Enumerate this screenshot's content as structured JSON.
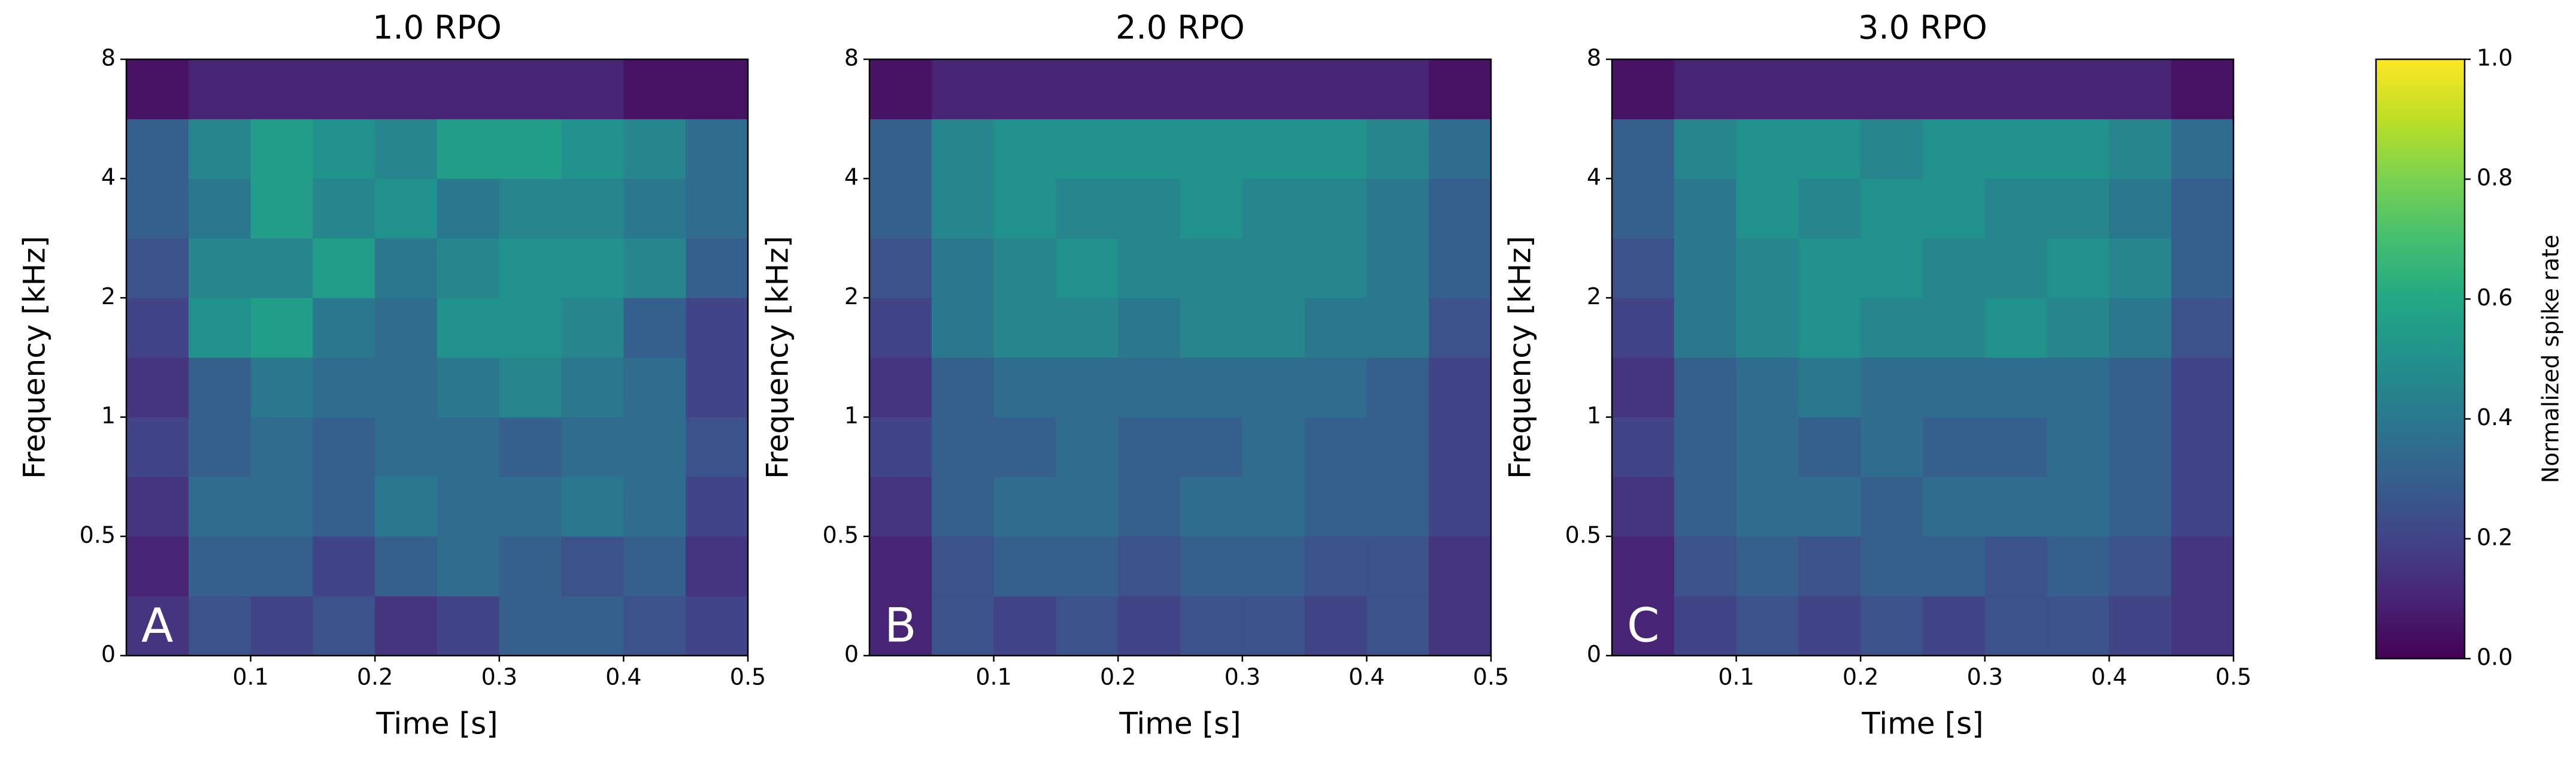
{
  "chart_data": [
    {
      "type": "heatmap",
      "title": "1.0 RPO",
      "annotation": "A",
      "xlabel": "Time [s]",
      "ylabel": "Frequency [kHz]",
      "xlim": [
        0,
        0.5
      ],
      "xticks": [
        0.1,
        0.2,
        0.3,
        0.4,
        0.5
      ],
      "ylim": [
        0,
        8
      ],
      "yticks": [
        0,
        0.5,
        1,
        2,
        4,
        8
      ],
      "x_edges": [
        0,
        0.05,
        0.1,
        0.15,
        0.2,
        0.25,
        0.3,
        0.35,
        0.4,
        0.45,
        0.5
      ],
      "y_edges": [
        0,
        0.25,
        0.5,
        0.75,
        1,
        1.5,
        2,
        3,
        4,
        6,
        8
      ],
      "z": [
        [
          0.15,
          0.25,
          0.2,
          0.25,
          0.15,
          0.2,
          0.3,
          0.3,
          0.25,
          0.2
        ],
        [
          0.1,
          0.3,
          0.3,
          0.2,
          0.3,
          0.35,
          0.3,
          0.25,
          0.3,
          0.15
        ],
        [
          0.15,
          0.35,
          0.35,
          0.3,
          0.4,
          0.35,
          0.35,
          0.4,
          0.35,
          0.2
        ],
        [
          0.2,
          0.3,
          0.35,
          0.3,
          0.35,
          0.35,
          0.3,
          0.35,
          0.35,
          0.25
        ],
        [
          0.15,
          0.3,
          0.4,
          0.35,
          0.35,
          0.4,
          0.45,
          0.4,
          0.35,
          0.2
        ],
        [
          0.2,
          0.5,
          0.55,
          0.4,
          0.35,
          0.5,
          0.5,
          0.45,
          0.3,
          0.2
        ],
        [
          0.25,
          0.45,
          0.45,
          0.55,
          0.4,
          0.45,
          0.5,
          0.5,
          0.45,
          0.3
        ],
        [
          0.3,
          0.4,
          0.55,
          0.45,
          0.5,
          0.4,
          0.45,
          0.45,
          0.4,
          0.35
        ],
        [
          0.3,
          0.45,
          0.55,
          0.5,
          0.45,
          0.55,
          0.55,
          0.5,
          0.45,
          0.35
        ],
        [
          0.05,
          0.1,
          0.1,
          0.1,
          0.1,
          0.1,
          0.1,
          0.1,
          0.05,
          0.05
        ]
      ]
    },
    {
      "type": "heatmap",
      "title": "2.0 RPO",
      "annotation": "B",
      "xlabel": "Time [s]",
      "ylabel": "Frequency [kHz]",
      "xlim": [
        0,
        0.5
      ],
      "xticks": [
        0.1,
        0.2,
        0.3,
        0.4,
        0.5
      ],
      "ylim": [
        0,
        8
      ],
      "yticks": [
        0,
        0.5,
        1,
        2,
        4,
        8
      ],
      "x_edges": [
        0,
        0.05,
        0.1,
        0.15,
        0.2,
        0.25,
        0.3,
        0.35,
        0.4,
        0.45,
        0.5
      ],
      "y_edges": [
        0,
        0.25,
        0.5,
        0.75,
        1,
        1.5,
        2,
        3,
        4,
        6,
        8
      ],
      "z": [
        [
          0.1,
          0.25,
          0.2,
          0.25,
          0.2,
          0.25,
          0.25,
          0.2,
          0.25,
          0.15
        ],
        [
          0.1,
          0.25,
          0.3,
          0.3,
          0.25,
          0.3,
          0.3,
          0.25,
          0.25,
          0.15
        ],
        [
          0.15,
          0.3,
          0.35,
          0.35,
          0.3,
          0.35,
          0.35,
          0.3,
          0.3,
          0.2
        ],
        [
          0.2,
          0.3,
          0.3,
          0.35,
          0.3,
          0.3,
          0.35,
          0.3,
          0.3,
          0.2
        ],
        [
          0.15,
          0.3,
          0.35,
          0.35,
          0.35,
          0.35,
          0.35,
          0.35,
          0.3,
          0.2
        ],
        [
          0.2,
          0.4,
          0.45,
          0.45,
          0.4,
          0.45,
          0.45,
          0.4,
          0.4,
          0.25
        ],
        [
          0.25,
          0.4,
          0.45,
          0.5,
          0.45,
          0.45,
          0.45,
          0.45,
          0.4,
          0.3
        ],
        [
          0.3,
          0.45,
          0.5,
          0.45,
          0.45,
          0.5,
          0.45,
          0.45,
          0.4,
          0.3
        ],
        [
          0.3,
          0.45,
          0.5,
          0.5,
          0.5,
          0.5,
          0.5,
          0.5,
          0.45,
          0.35
        ],
        [
          0.05,
          0.1,
          0.1,
          0.1,
          0.1,
          0.1,
          0.1,
          0.1,
          0.1,
          0.05
        ]
      ]
    },
    {
      "type": "heatmap",
      "title": "3.0 RPO",
      "annotation": "C",
      "xlabel": "Time [s]",
      "ylabel": "Frequency [kHz]",
      "xlim": [
        0,
        0.5
      ],
      "xticks": [
        0.1,
        0.2,
        0.3,
        0.4,
        0.5
      ],
      "ylim": [
        0,
        8
      ],
      "yticks": [
        0,
        0.5,
        1,
        2,
        4,
        8
      ],
      "x_edges": [
        0,
        0.05,
        0.1,
        0.15,
        0.2,
        0.25,
        0.3,
        0.35,
        0.4,
        0.45,
        0.5
      ],
      "y_edges": [
        0,
        0.25,
        0.5,
        0.75,
        1,
        1.5,
        2,
        3,
        4,
        6,
        8
      ],
      "z": [
        [
          0.1,
          0.2,
          0.25,
          0.2,
          0.25,
          0.2,
          0.25,
          0.25,
          0.2,
          0.15
        ],
        [
          0.1,
          0.25,
          0.3,
          0.25,
          0.3,
          0.3,
          0.25,
          0.3,
          0.25,
          0.15
        ],
        [
          0.15,
          0.3,
          0.35,
          0.35,
          0.3,
          0.35,
          0.35,
          0.35,
          0.3,
          0.2
        ],
        [
          0.2,
          0.3,
          0.35,
          0.3,
          0.35,
          0.3,
          0.3,
          0.35,
          0.3,
          0.2
        ],
        [
          0.15,
          0.3,
          0.35,
          0.4,
          0.35,
          0.35,
          0.35,
          0.35,
          0.3,
          0.2
        ],
        [
          0.2,
          0.4,
          0.45,
          0.5,
          0.45,
          0.45,
          0.5,
          0.45,
          0.4,
          0.25
        ],
        [
          0.25,
          0.4,
          0.45,
          0.5,
          0.5,
          0.45,
          0.45,
          0.5,
          0.45,
          0.3
        ],
        [
          0.3,
          0.4,
          0.5,
          0.45,
          0.5,
          0.5,
          0.45,
          0.45,
          0.4,
          0.3
        ],
        [
          0.3,
          0.45,
          0.5,
          0.5,
          0.45,
          0.5,
          0.5,
          0.5,
          0.45,
          0.35
        ],
        [
          0.05,
          0.1,
          0.1,
          0.1,
          0.1,
          0.1,
          0.1,
          0.1,
          0.1,
          0.05
        ]
      ]
    },
    {
      "type": "colorbar",
      "label": "Normalized spike rate",
      "colormap": "viridis",
      "lim": [
        0,
        1
      ],
      "ticks": [
        {
          "value": 0,
          "label": "0.0"
        },
        {
          "value": 0.2,
          "label": "0.2"
        },
        {
          "value": 0.4,
          "label": "0.4"
        },
        {
          "value": 0.6,
          "label": "0.6"
        },
        {
          "value": 0.8,
          "label": "0.8"
        },
        {
          "value": 1,
          "label": "1.0"
        }
      ]
    }
  ]
}
